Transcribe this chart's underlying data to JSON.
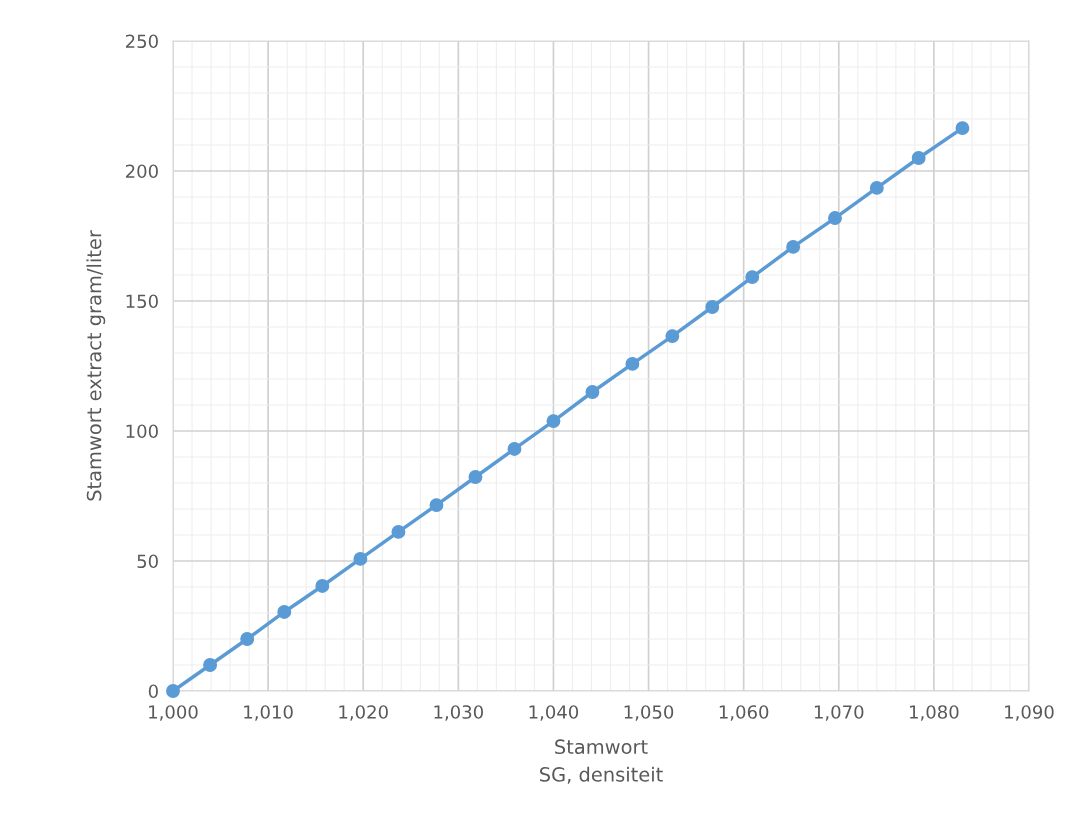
{
  "chart_data": {
    "type": "line",
    "xlabel": "Stamwort\nSG, densiteit",
    "ylabel": "Stamwort extract gram/liter",
    "x": [
      1000,
      1003.9,
      1007.8,
      1011.7,
      1015.7,
      1019.7,
      1023.7,
      1027.7,
      1031.8,
      1035.9,
      1040,
      1044.1,
      1048.3,
      1052.5,
      1056.7,
      1060.9,
      1065.2,
      1069.6,
      1074,
      1078.4,
      1083
    ],
    "series": [
      {
        "color": "#5b9bd5",
        "values": [
          0,
          10,
          20,
          30.4,
          40.4,
          50.8,
          61.2,
          71.5,
          82.3,
          93.1,
          103.8,
          115,
          125.8,
          136.5,
          147.7,
          159.2,
          170.8,
          181.9,
          193.5,
          205,
          216.5
        ]
      }
    ],
    "xlim": [
      1000,
      1090
    ],
    "xticks": [
      {
        "value": 1000,
        "label": "1,000"
      },
      {
        "value": 1010,
        "label": "1,010"
      },
      {
        "value": 1020,
        "label": "1,020"
      },
      {
        "value": 1030,
        "label": "1,030"
      },
      {
        "value": 1040,
        "label": "1,040"
      },
      {
        "value": 1050,
        "label": "1,050"
      },
      {
        "value": 1060,
        "label": "1,060"
      },
      {
        "value": 1070,
        "label": "1,070"
      },
      {
        "value": 1080,
        "label": "1,080"
      },
      {
        "value": 1090,
        "label": "1,090"
      }
    ],
    "ylim": [
      0,
      250
    ],
    "yticks": [
      0,
      50,
      100,
      150,
      200,
      250
    ],
    "grid": true,
    "marker": "circle",
    "line_style": "solid"
  }
}
